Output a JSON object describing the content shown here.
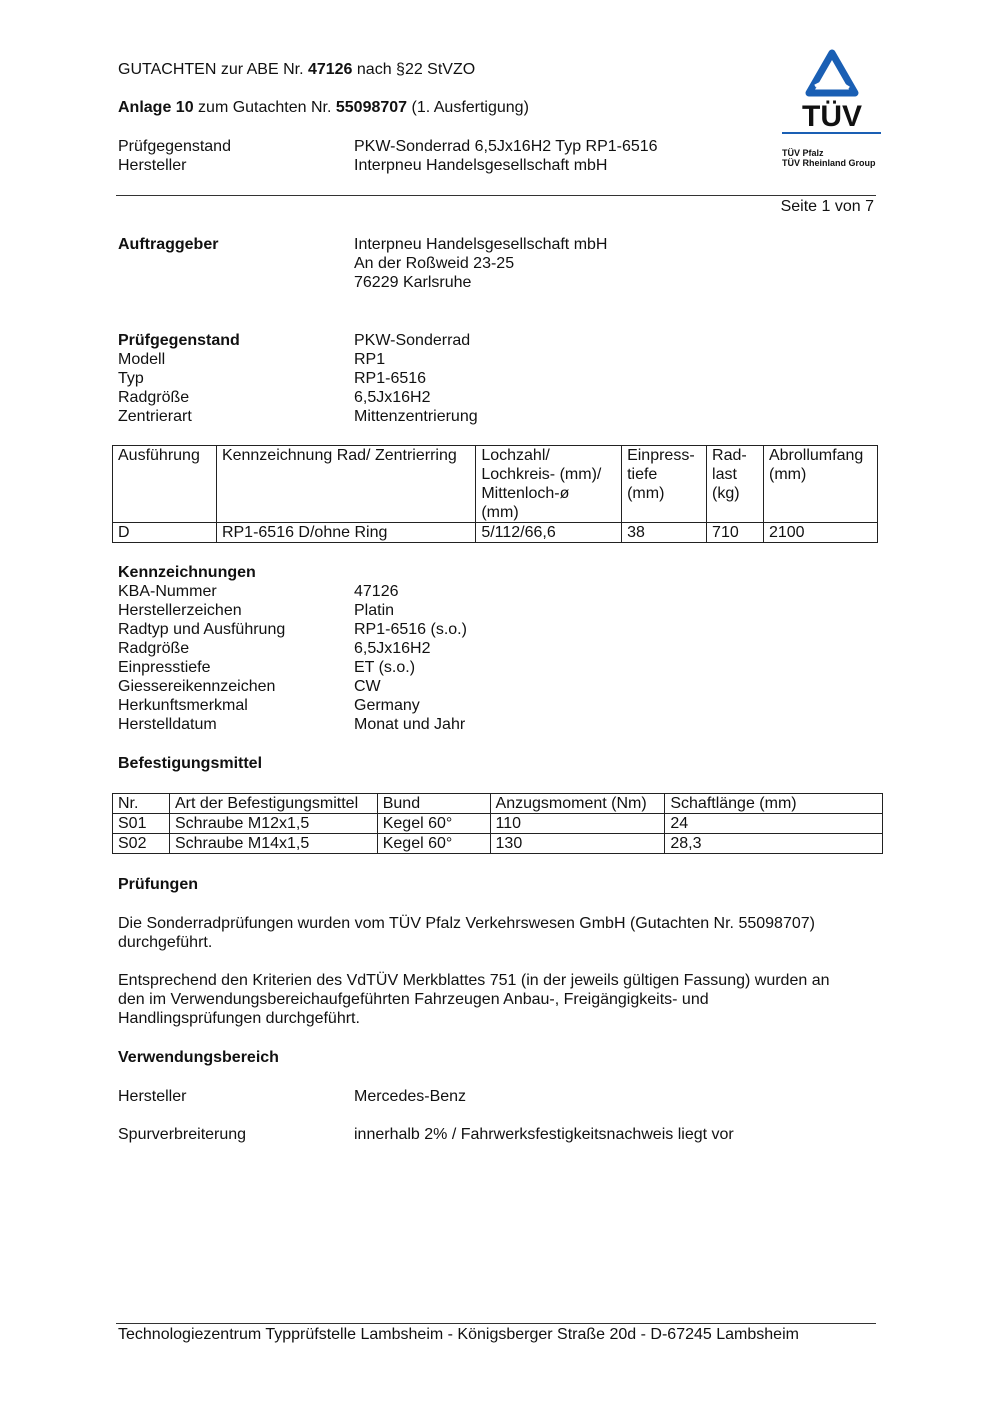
{
  "header": {
    "line1_pre": "GUTACHTEN zur ABE Nr. ",
    "line1_bold": "47126",
    "line1_post": " nach §22 StVZO",
    "line2_bold1": "Anlage 10",
    "line2_mid": " zum Gutachten Nr. ",
    "line2_bold2": "55098707",
    "line2_post": " (1. Ausfertigung)",
    "rows": [
      {
        "label": "Prüfgegenstand",
        "value": "PKW-Sonderrad 6,5Jx16H2 Typ RP1-6516"
      },
      {
        "label": "Hersteller",
        "value": "Interpneu Handelsgesellschaft mbH"
      }
    ],
    "page": "Seite 1 von 7"
  },
  "logo": {
    "brand": "TÜV",
    "line1": "TÜV Pfalz",
    "line2": "TÜV Rheinland Group",
    "color": "#1a5fb4"
  },
  "auftraggeber": {
    "label": "Auftraggeber",
    "lines": [
      "Interpneu Handelsgesellschaft mbH",
      "An der Roßweid 23-25",
      "76229 Karlsruhe"
    ]
  },
  "pruefgegenstand": {
    "rows": [
      {
        "label": "Prüfgegenstand",
        "value": "PKW-Sonderrad"
      },
      {
        "label": "Modell",
        "value": "RP1"
      },
      {
        "label": "Typ",
        "value": "RP1-6516"
      },
      {
        "label": "Radgröße",
        "value": "6,5Jx16H2"
      },
      {
        "label": "Zentrierart",
        "value": "Mittenzentrierung"
      }
    ]
  },
  "table1": {
    "headers": [
      "Ausführung",
      "Kennzeichnung Rad/ Zentrierring",
      "Lochzahl/\nLochkreis- (mm)/\nMittenloch-ø\n(mm)",
      "Einpress-\ntiefe\n(mm)",
      "Rad-\nlast\n(kg)",
      "Abrollumfang\n(mm)"
    ],
    "rows": [
      [
        "D",
        "RP1-6516 D/ohne Ring",
        "5/112/66,6",
        "38",
        "710",
        "2100"
      ]
    ]
  },
  "kennzeichnungen": {
    "title": "Kennzeichnungen",
    "rows": [
      {
        "label": "KBA-Nummer",
        "value": "47126"
      },
      {
        "label": "Herstellerzeichen",
        "value": "Platin"
      },
      {
        "label": "Radtyp und Ausführung",
        "value": "RP1-6516 (s.o.)"
      },
      {
        "label": "Radgröße",
        "value": "6,5Jx16H2"
      },
      {
        "label": "Einpresstiefe",
        "value": "ET (s.o.)"
      },
      {
        "label": "Giessereikennzeichen",
        "value": "CW"
      },
      {
        "label": "Herkunftsmerkmal",
        "value": "Germany"
      },
      {
        "label": "Herstelldatum",
        "value": "Monat und Jahr"
      }
    ]
  },
  "befestigung": {
    "title": "Befestigungsmittel",
    "headers": [
      "Nr.",
      "Art der Befestigungsmittel",
      "Bund",
      "Anzugsmoment (Nm)",
      "Schaftlänge (mm)"
    ],
    "rows": [
      [
        "S01",
        "Schraube M12x1,5",
        "Kegel 60°",
        "110",
        "24"
      ],
      [
        "S02",
        "Schraube M14x1,5",
        "Kegel 60°",
        "130",
        "28,3"
      ]
    ]
  },
  "pruefungen": {
    "title": "Prüfungen",
    "p1": "Die Sonderradprüfungen wurden vom TÜV Pfalz Verkehrswesen GmbH (Gutachten Nr. 55098707)\ndurchgeführt.",
    "p2": "Entsprechend den Kriterien des VdTÜV Merkblattes 751 (in der jeweils gültigen Fassung) wurden an\nden im Verwendungsbereichaufgeführten Fahrzeugen Anbau-, Freigängigkeits- und\nHandlingsprüfungen durchgeführt."
  },
  "verwendung": {
    "title": "Verwendungsbereich",
    "rows": [
      {
        "label": "Hersteller",
        "value": "Mercedes-Benz"
      },
      {
        "label": "Spurverbreiterung",
        "value": "innerhalb 2% / Fahrwerksfestigkeitsnachweis liegt vor"
      }
    ]
  },
  "footer": "Technologiezentrum Typprüfstelle Lambsheim - Königsberger Straße 20d - D-67245 Lambsheim"
}
